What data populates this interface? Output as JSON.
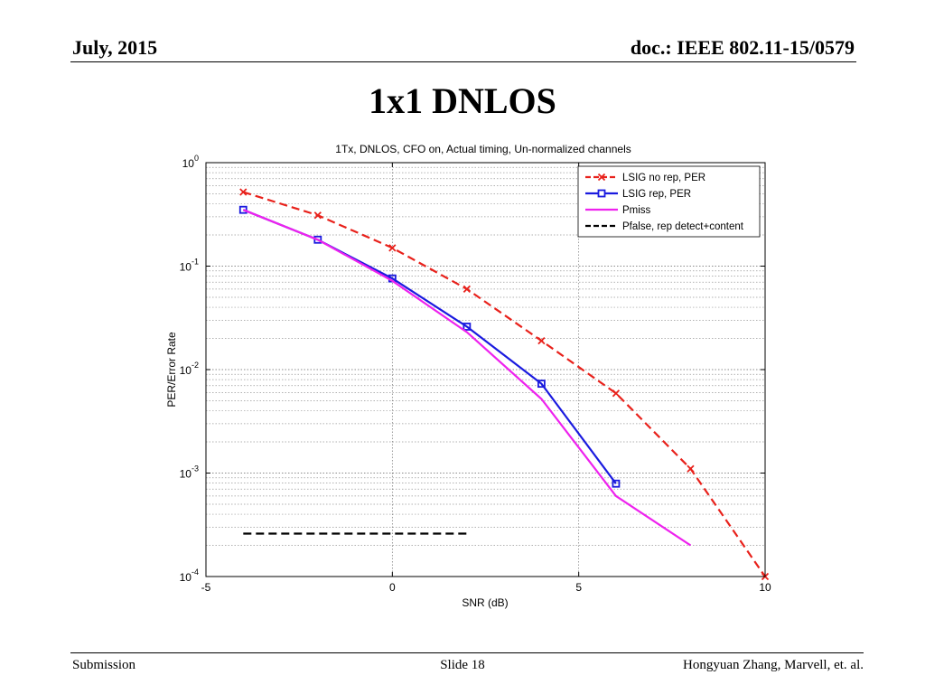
{
  "slide": {
    "date": "July, 2015",
    "doc": "doc.: IEEE 802.11-15/0579",
    "title": "1x1 DNLOS",
    "footer_left": "Submission",
    "footer_center": "Slide 18",
    "footer_right": "Hongyuan Zhang,  Marvell, et. al."
  },
  "chart_data": {
    "type": "line",
    "title": "1Tx, DNLOS, CFO on, Actual timing, Un-normalized channels",
    "xlabel": "SNR (dB)",
    "ylabel": "PER/Error Rate",
    "xlim": [
      -5,
      10
    ],
    "ylim": [
      0.0001,
      1
    ],
    "yscale": "log",
    "x_ticks": [
      "-5",
      "0",
      "5",
      "10"
    ],
    "y_ticks": [
      {
        "base": "10",
        "exp": "0"
      },
      {
        "base": "10",
        "exp": "-1"
      },
      {
        "base": "10",
        "exp": "-2"
      },
      {
        "base": "10",
        "exp": "-3"
      },
      {
        "base": "10",
        "exp": "-4"
      }
    ],
    "grid": true,
    "legend_position": "top-right",
    "series": [
      {
        "name": "LSIG no rep, PER",
        "color": "#e8211b",
        "dash": "dashed",
        "marker": "x",
        "x": [
          -4,
          -2,
          0,
          2,
          4,
          6,
          8,
          10
        ],
        "y": [
          0.52,
          0.31,
          0.15,
          0.06,
          0.019,
          0.0059,
          0.0011,
          0.0001
        ]
      },
      {
        "name": "LSIG rep, PER",
        "color": "#1a1adf",
        "dash": "solid",
        "marker": "square",
        "x": [
          -4,
          -2,
          0,
          2,
          4,
          6
        ],
        "y": [
          0.35,
          0.18,
          0.076,
          0.026,
          0.0073,
          0.00079
        ]
      },
      {
        "name": "Pmiss",
        "color": "#ee22ee",
        "dash": "solid",
        "marker": "none",
        "x": [
          -4,
          -2,
          0,
          2,
          4,
          6,
          8
        ],
        "y": [
          0.35,
          0.18,
          0.072,
          0.023,
          0.0052,
          0.0006,
          0.0002
        ]
      },
      {
        "name": "Pfalse, rep detect+content",
        "color": "#000000",
        "dash": "dashed",
        "marker": "none",
        "x": [
          -4,
          2
        ],
        "y": [
          0.00026,
          0.00026
        ]
      }
    ]
  }
}
